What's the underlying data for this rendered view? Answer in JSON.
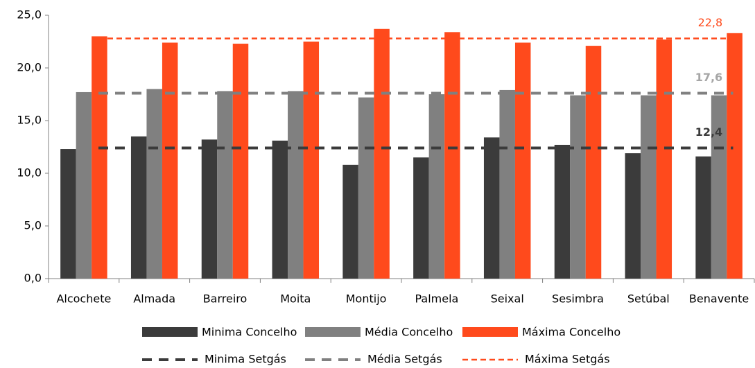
{
  "chart_data": {
    "type": "bar",
    "categories": [
      "Alcochete",
      "Almada",
      "Barreiro",
      "Moita",
      "Montijo",
      "Palmela",
      "Seixal",
      "Sesimbra",
      "Setúbal",
      "Benavente"
    ],
    "series": [
      {
        "name": "Minima Concelho",
        "color": "#3b3b3b",
        "values": [
          12.3,
          13.5,
          13.2,
          13.1,
          10.8,
          11.5,
          13.4,
          12.7,
          11.9,
          11.6
        ]
      },
      {
        "name": "Média Concelho",
        "color": "#808080",
        "values": [
          17.7,
          18.0,
          17.8,
          17.8,
          17.2,
          17.5,
          17.9,
          17.4,
          17.4,
          17.4
        ]
      },
      {
        "name": "Máxima Concelho",
        "color": "#ff4a1c",
        "values": [
          23.0,
          22.4,
          22.3,
          22.5,
          23.7,
          23.4,
          22.4,
          22.1,
          22.7,
          23.3
        ]
      }
    ],
    "reference_lines": [
      {
        "name": "Minima Setgás",
        "color": "#3b3b3b",
        "label_color": "#3b3b3b",
        "value": 12.4,
        "value_label": "12,4"
      },
      {
        "name": "Média Setgás",
        "color": "#808080",
        "label_color": "#a6a6a6",
        "value": 17.6,
        "value_label": "17,6"
      },
      {
        "name": "Máxima Setgás",
        "color": "#ff4a1c",
        "label_color": "#ff4a1c",
        "value": 22.8,
        "value_label": "22,8"
      }
    ],
    "ylim": [
      0,
      25
    ],
    "yticks": [
      {
        "value": 0,
        "label": "0,0"
      },
      {
        "value": 5,
        "label": "5,0"
      },
      {
        "value": 10,
        "label": "10,0"
      },
      {
        "value": 15,
        "label": "15,0"
      },
      {
        "value": 20,
        "label": "20,0"
      },
      {
        "value": 25,
        "label": "25,0"
      }
    ],
    "grid": false
  }
}
